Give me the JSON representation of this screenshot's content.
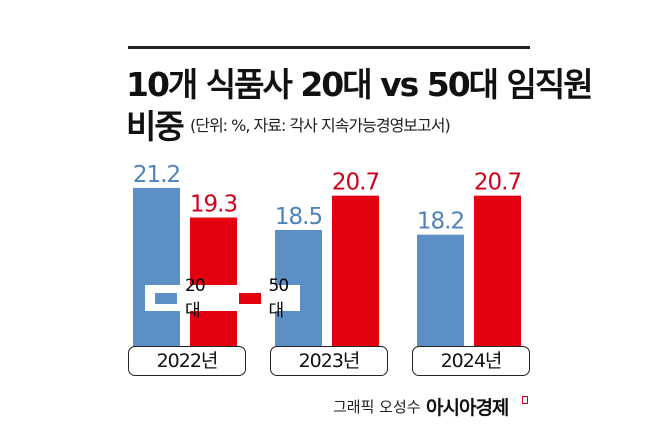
{
  "chart_data": {
    "type": "bar",
    "title": "10개 식품사 20대 vs 50대 임직원 비중",
    "title_line1": "10개 식품사 20대 vs 50대 임직원",
    "title_line2": "비중",
    "subtitle": "(단위: %, 자료: 각사 지속가능경영보고서)",
    "categories": [
      "2022년",
      "2023년",
      "2024년"
    ],
    "series": [
      {
        "name": "20대",
        "color": "#5b8fc6",
        "values": [
          21.2,
          18.5,
          18.2
        ]
      },
      {
        "name": "50대",
        "color": "#e3000f",
        "values": [
          19.3,
          20.7,
          20.7
        ]
      }
    ],
    "ylim": [
      11,
      22
    ],
    "legend": "inside-left",
    "grid": false
  },
  "credit": "그래픽 오성수",
  "brand": "아시아경제"
}
